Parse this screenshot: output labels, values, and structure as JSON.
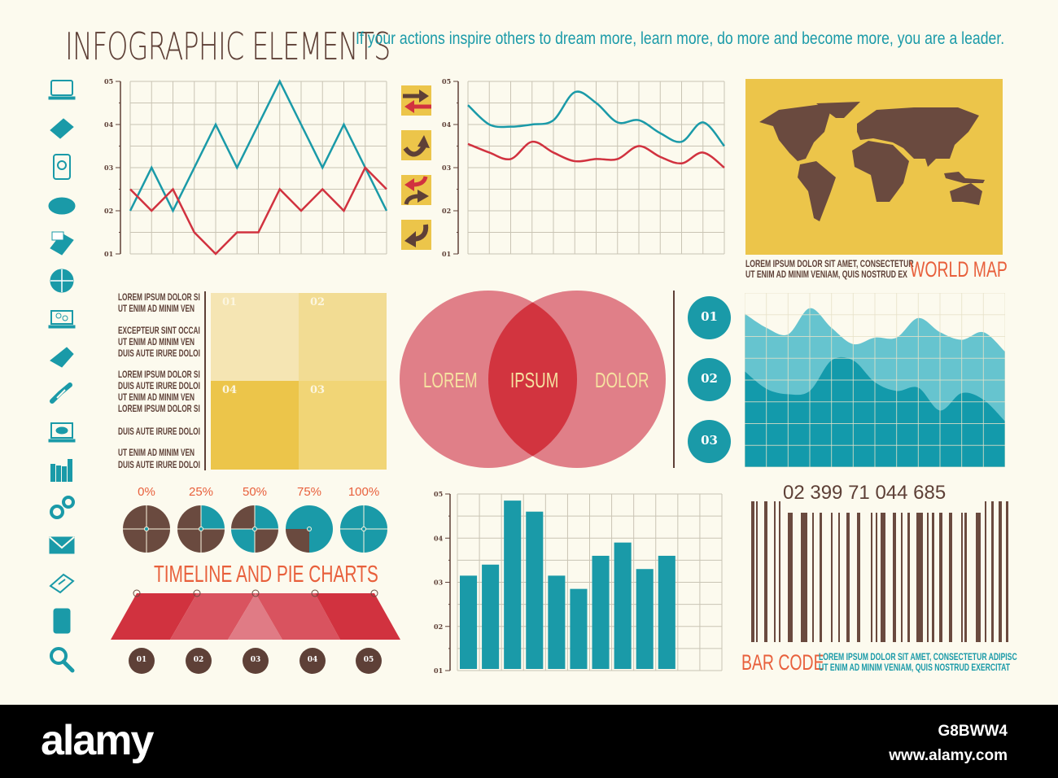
{
  "header": {
    "title": "INFOGRAPHIC ELEMENTS",
    "quote": "If your actions inspire others to dream more, learn more, do more and become more, you are a leader."
  },
  "colors": {
    "background": "#fcfaee",
    "brown": "#5e4037",
    "teal": "#1a9aa8",
    "red": "#d1323f",
    "yellow": "#ecc54a",
    "orange": "#e8603c"
  },
  "sidebar": {
    "icons": [
      "laptop-icon",
      "notepad-pencil-icon",
      "phone-search-icon",
      "cloud-icon",
      "phone-mail-icon",
      "globe-icon",
      "laptop-gears-icon",
      "folded-paper-icon",
      "link-icon",
      "laptop-cloud-icon",
      "bar-chart-icon",
      "gears-icon",
      "envelope-icon",
      "document-pen-icon",
      "tablet-icon",
      "search-icon"
    ]
  },
  "arrows": [
    "swap-arrows-icon",
    "curved-arrow-up-icon",
    "crossing-arrows-icon",
    "curved-arrow-down-left-icon"
  ],
  "text_block": [
    [
      "LOREM IPSUM DOLOR SI",
      "UT ENIM AD MINIM VEN"
    ],
    [
      "EXCEPTEUR SINT OCCAI",
      "UT ENIM AD MINIM VEN",
      "DUIS AUTE IRURE DOLOI"
    ],
    [
      "LOREM IPSUM DOLOR SI",
      "DUIS AUTE IRURE DOLOI",
      "UT ENIM AD MINIM VEN",
      "LOREM IPSUM DOLOR SI"
    ],
    [
      "DUIS AUTE IRURE DOLOI"
    ],
    [
      "UT ENIM AD MINIM VEN",
      "DUIS AUTE IRURE DOLOI"
    ]
  ],
  "squares": [
    "01",
    "02",
    "04",
    "03"
  ],
  "venn": {
    "left": "LOREM",
    "middle": "IPSUM",
    "right": "DOLOR"
  },
  "steps": [
    "01",
    "02",
    "03"
  ],
  "world_map": {
    "caption_lines": [
      "LOREM IPSUM DOLOR SIT AMET, CONSECTETUR",
      "UT ENIM AD MINIM VENIAM, QUIS NOSTRUD EX"
    ],
    "label": "WORLD MAP"
  },
  "timeline": {
    "title": "TIMELINE AND PIE CHARTS",
    "labels": [
      "01",
      "02",
      "03",
      "04",
      "05"
    ]
  },
  "barcode": {
    "number": "02 399 71 044 685",
    "label": "BAR CODE",
    "caption_lines": [
      "LOREM IPSUM DOLOR SIT AMET, CONSECTETUR ADIPISC",
      "UT ENIM AD MINIM VENIAM, QUIS NOSTRUD EXERCITAT"
    ]
  },
  "footer": {
    "logo": "alamy",
    "image_id": "G8BWW4",
    "url": "www.alamy.com"
  },
  "chart_data": [
    {
      "type": "line",
      "id": "zigzag",
      "yticks": [
        "01",
        "02",
        "03",
        "04",
        "05"
      ],
      "ylim": [
        1,
        5
      ],
      "grid": true,
      "x": [
        0,
        1,
        2,
        3,
        4,
        5,
        6,
        7,
        8,
        9,
        10,
        11,
        12
      ],
      "series": [
        {
          "color": "#1a9aa8",
          "values": [
            2,
            3,
            2,
            3,
            4,
            3,
            4,
            5,
            4,
            3,
            4,
            3,
            2
          ]
        },
        {
          "color": "#d1323f",
          "values": [
            2.5,
            2,
            2.5,
            1.5,
            1,
            1.5,
            1.5,
            2.5,
            2,
            2.5,
            2,
            3,
            2.5
          ]
        }
      ]
    },
    {
      "type": "line",
      "id": "smooth",
      "smooth": true,
      "yticks": [
        "01",
        "02",
        "03",
        "04",
        "05"
      ],
      "ylim": [
        1,
        5
      ],
      "grid": true,
      "x": [
        0,
        1,
        2,
        3,
        4,
        5,
        6,
        7,
        8,
        9,
        10,
        11,
        12
      ],
      "series": [
        {
          "color": "#1a9aa8",
          "values": [
            4.45,
            4.0,
            3.95,
            4.0,
            4.1,
            4.75,
            4.5,
            4.05,
            4.1,
            3.8,
            3.6,
            4.05,
            3.5
          ]
        },
        {
          "color": "#d1323f",
          "values": [
            3.55,
            3.35,
            3.2,
            3.6,
            3.35,
            3.15,
            3.2,
            3.2,
            3.5,
            3.25,
            3.1,
            3.35,
            3.0
          ]
        }
      ]
    },
    {
      "type": "bar",
      "id": "bars",
      "yticks": [
        "01",
        "02",
        "03",
        "04",
        "05"
      ],
      "ylim": [
        1,
        5
      ],
      "grid": true,
      "categories": [
        1,
        2,
        3,
        4,
        5,
        6,
        7,
        8,
        9,
        10
      ],
      "values": [
        3.15,
        3.4,
        4.85,
        4.6,
        3.15,
        2.85,
        3.6,
        3.9,
        3.3,
        3.6
      ],
      "color": "#1a9aa8"
    },
    {
      "type": "area",
      "id": "area",
      "ylim": [
        0,
        8
      ],
      "grid": true,
      "x": [
        0,
        1,
        2,
        3,
        4,
        5,
        6,
        7,
        8,
        9,
        10,
        11,
        12
      ],
      "series": [
        {
          "color": "#66c4cf",
          "values": [
            7.05,
            6.4,
            6.1,
            7.3,
            6.4,
            5.65,
            5.95,
            5.95,
            6.85,
            6.2,
            5.85,
            6.2,
            5.3
          ]
        },
        {
          "color": "#139aab",
          "values": [
            4.4,
            3.6,
            3.35,
            3.5,
            4.9,
            4.9,
            3.9,
            3.5,
            3.65,
            2.6,
            3.4,
            3.1,
            2.1
          ]
        }
      ]
    },
    {
      "type": "pie",
      "id": "pies",
      "labels": [
        "0%",
        "25%",
        "50%",
        "75%",
        "100%"
      ],
      "values": [
        0,
        25,
        50,
        75,
        100
      ],
      "colors": {
        "filled": "#1a9aa8",
        "empty": "#6a4a3f"
      }
    }
  ]
}
